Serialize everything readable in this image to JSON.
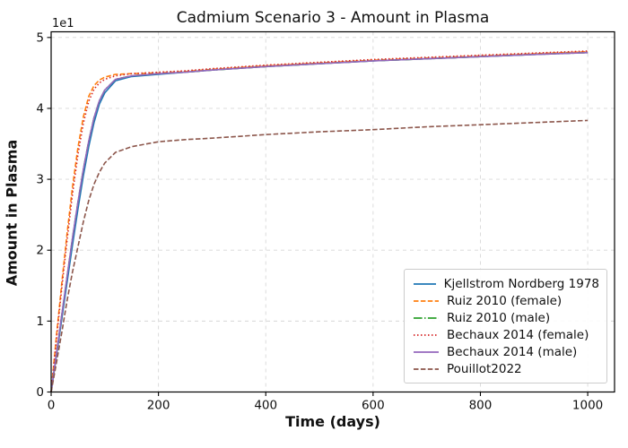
{
  "chart_data": {
    "type": "line",
    "title": "Cadmium Scenario 3 - Amount in Plasma",
    "xlabel": "Time (days)",
    "ylabel": "Amount in Plasma",
    "y_scale_factor": "1e1",
    "xlim": [
      0,
      1050
    ],
    "ylim": [
      0,
      50.8
    ],
    "x_ticks": [
      0,
      200,
      400,
      600,
      800,
      1000
    ],
    "y_ticks": [
      0,
      1,
      2,
      3,
      4,
      5
    ],
    "y_tick_multiplier": 10,
    "grid": true,
    "grid_style": "dashed",
    "legend_position": "lower right",
    "x": [
      0,
      10,
      20,
      30,
      40,
      50,
      60,
      70,
      80,
      90,
      100,
      120,
      150,
      200,
      250,
      300,
      400,
      500,
      600,
      700,
      800,
      900,
      1000
    ],
    "series": [
      {
        "name": "Kjellstrom Nordberg 1978",
        "color": "#1f77b4",
        "linestyle": "solid",
        "values": [
          0,
          5.2,
          10.4,
          15.6,
          20.8,
          25.8,
          30.5,
          34.6,
          38.0,
          40.6,
          42.2,
          43.9,
          44.5,
          44.8,
          45.1,
          45.4,
          45.9,
          46.3,
          46.7,
          47.0,
          47.3,
          47.6,
          47.9
        ]
      },
      {
        "name": "Ruiz 2010 (female)",
        "color": "#ff7f0e",
        "linestyle": "dashed",
        "values": [
          0,
          8.0,
          15.5,
          22.5,
          29.0,
          34.5,
          38.8,
          41.7,
          43.2,
          44.0,
          44.4,
          44.8,
          44.9,
          45.0,
          45.2,
          45.5,
          46.0,
          46.4,
          46.8,
          47.1,
          47.4,
          47.7,
          48.0
        ]
      },
      {
        "name": "Ruiz 2010 (male)",
        "color": "#2ca02c",
        "linestyle": "dashdot",
        "values": [
          0,
          5.5,
          11.0,
          16.4,
          21.8,
          26.8,
          31.4,
          35.4,
          38.7,
          41.1,
          42.6,
          44.1,
          44.6,
          44.9,
          45.1,
          45.4,
          45.9,
          46.3,
          46.7,
          47.0,
          47.3,
          47.6,
          47.85
        ]
      },
      {
        "name": "Bechaux 2014 (female)",
        "color": "#d62728",
        "linestyle": "dotted",
        "values": [
          0,
          7.6,
          14.8,
          21.6,
          28.0,
          33.5,
          37.9,
          41.0,
          42.7,
          43.6,
          44.1,
          44.6,
          44.9,
          45.1,
          45.3,
          45.6,
          46.1,
          46.5,
          46.9,
          47.2,
          47.5,
          47.8,
          48.1
        ]
      },
      {
        "name": "Bechaux 2014 (male)",
        "color": "#9467bd",
        "linestyle": "solid",
        "values": [
          0,
          5.5,
          11.0,
          16.4,
          21.8,
          26.8,
          31.4,
          35.4,
          38.7,
          41.1,
          42.6,
          44.1,
          44.6,
          44.9,
          45.1,
          45.4,
          45.9,
          46.3,
          46.7,
          47.0,
          47.3,
          47.6,
          47.85
        ]
      },
      {
        "name": "Pouillot2022",
        "color": "#8c564b",
        "linestyle": "dashed",
        "values": [
          0,
          4.2,
          8.5,
          13.0,
          17.0,
          20.5,
          24.0,
          27.0,
          29.3,
          31.0,
          32.3,
          33.8,
          34.6,
          35.3,
          35.6,
          35.8,
          36.3,
          36.7,
          37.0,
          37.4,
          37.7,
          38.0,
          38.3
        ]
      }
    ]
  }
}
